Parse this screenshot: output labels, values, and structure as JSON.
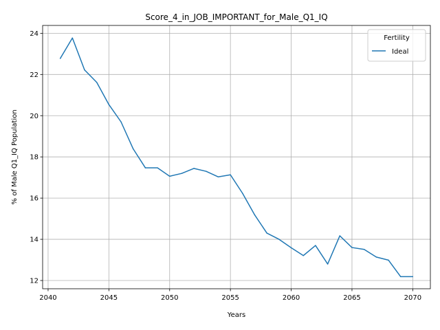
{
  "chart_data": {
    "type": "line",
    "title": "Score_4_in_JOB_IMPORTANT_for_Male_Q1_IQ",
    "xlabel": "Years",
    "ylabel": "% of Male Q1_IQ Population",
    "xlim": [
      2039.55,
      2071.45
    ],
    "ylim": [
      11.6,
      24.38
    ],
    "xticks": [
      2040,
      2045,
      2050,
      2055,
      2060,
      2065,
      2070
    ],
    "yticks": [
      12,
      14,
      16,
      18,
      20,
      22,
      24
    ],
    "grid": true,
    "legend": {
      "title": "Fertility",
      "placement": "top-right"
    },
    "x": [
      2041,
      2042,
      2043,
      2044,
      2045,
      2046,
      2047,
      2048,
      2049,
      2050,
      2051,
      2052,
      2053,
      2054,
      2055,
      2056,
      2057,
      2058,
      2059,
      2060,
      2061,
      2062,
      2063,
      2064,
      2065,
      2066,
      2067,
      2068,
      2069,
      2070
    ],
    "series": [
      {
        "name": "Ideal",
        "color": "#1f77b4",
        "values": [
          22.78,
          23.77,
          22.22,
          21.62,
          20.54,
          19.7,
          18.39,
          17.47,
          17.47,
          17.06,
          17.2,
          17.44,
          17.3,
          17.03,
          17.13,
          16.23,
          15.18,
          14.3,
          14.0,
          13.59,
          13.21,
          13.7,
          12.8,
          14.17,
          13.6,
          13.51,
          13.14,
          12.99,
          12.19,
          12.19
        ]
      }
    ]
  }
}
